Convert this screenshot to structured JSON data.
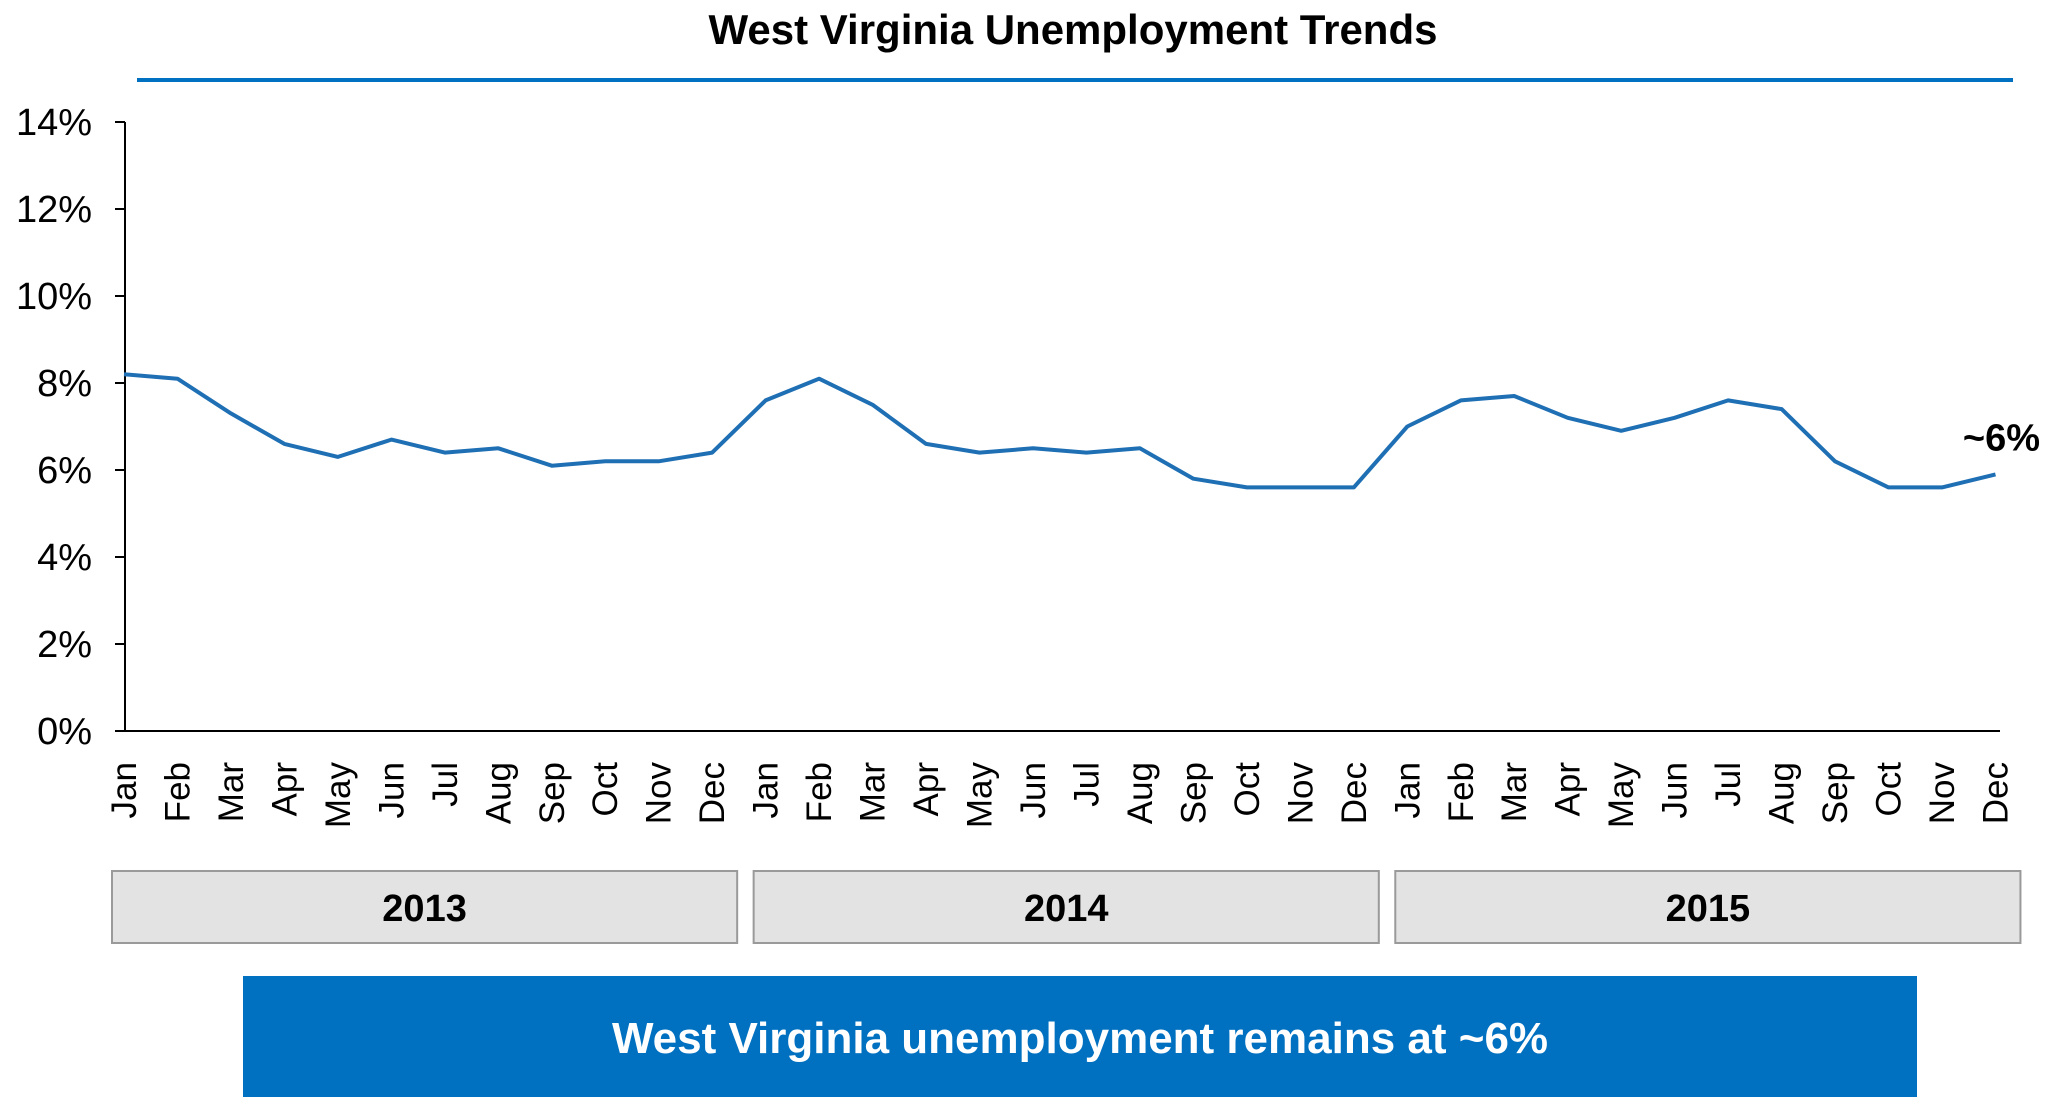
{
  "chart_data": {
    "type": "line",
    "title": "West Virginia Unemployment Trends",
    "categories": [
      "Jan",
      "Feb",
      "Mar",
      "Apr",
      "May",
      "Jun",
      "Jul",
      "Aug",
      "Sep",
      "Oct",
      "Nov",
      "Dec",
      "Jan",
      "Feb",
      "Mar",
      "Apr",
      "May",
      "Jun",
      "Jul",
      "Aug",
      "Sep",
      "Oct",
      "Nov",
      "Dec",
      "Jan",
      "Feb",
      "Mar",
      "Apr",
      "May",
      "Jun",
      "Jul",
      "Aug",
      "Sep",
      "Oct",
      "Nov",
      "Dec"
    ],
    "years": [
      "2013",
      "2014",
      "2015"
    ],
    "series": [
      {
        "values": [
          8.2,
          8.1,
          7.3,
          6.6,
          6.3,
          6.7,
          6.4,
          6.5,
          6.1,
          6.2,
          6.2,
          6.4,
          7.6,
          8.1,
          7.5,
          6.6,
          6.4,
          6.5,
          6.4,
          6.5,
          5.8,
          5.6,
          5.6,
          5.6,
          7.0,
          7.6,
          7.7,
          7.2,
          6.9,
          7.2,
          7.6,
          7.4,
          6.2,
          5.6,
          5.6,
          5.9
        ],
        "color": "#1f6fb4"
      }
    ],
    "ylim": [
      0,
      14
    ],
    "yticks": [
      0,
      2,
      4,
      6,
      8,
      10,
      12,
      14
    ],
    "ytick_labels": [
      "0%",
      "2%",
      "4%",
      "6%",
      "8%",
      "10%",
      "12%",
      "14%"
    ],
    "end_annotation": "~6%",
    "grid": false
  },
  "banner": {
    "text": "West Virginia unemployment remains at ~6%",
    "color": "#0070c0"
  },
  "colors": {
    "title_rule": "#0070c0",
    "year_box_fill": "#e3e3e3",
    "year_box_border": "#9a9a9a"
  }
}
